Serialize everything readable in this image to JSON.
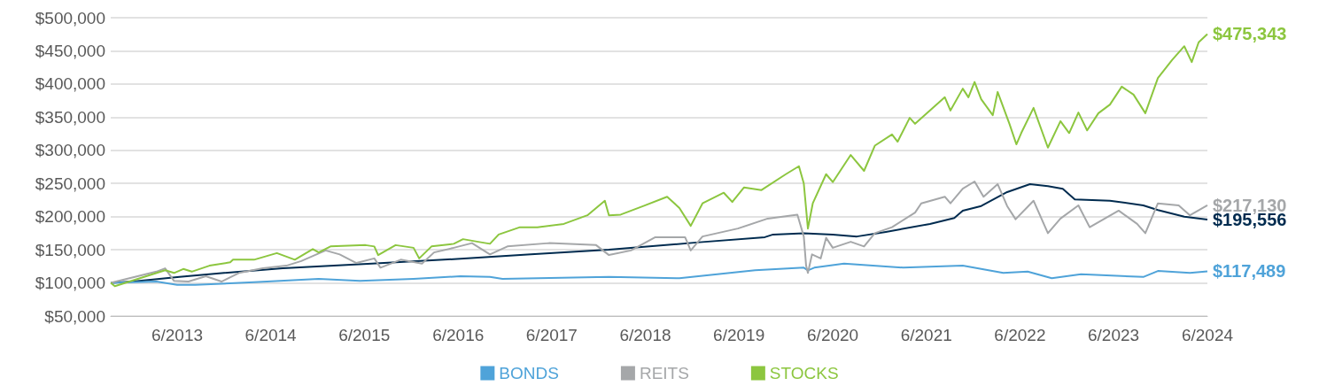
{
  "chart_data": {
    "type": "line",
    "marker": "none",
    "grid": "y",
    "legend": "bottom",
    "xlim": [
      "2012-09-15",
      "2024-06-01"
    ],
    "xticks": [
      {
        "value": "2013-06-01",
        "label": "6/2013"
      },
      {
        "value": "2014-06-01",
        "label": "6/2014"
      },
      {
        "value": "2015-06-01",
        "label": "6/2015"
      },
      {
        "value": "2016-06-01",
        "label": "6/2016"
      },
      {
        "value": "2017-06-01",
        "label": "6/2017"
      },
      {
        "value": "2018-06-01",
        "label": "6/2018"
      },
      {
        "value": "2019-06-01",
        "label": "6/2019"
      },
      {
        "value": "2020-06-01",
        "label": "6/2020"
      },
      {
        "value": "2021-06-01",
        "label": "6/2021"
      },
      {
        "value": "2022-06-01",
        "label": "6/2022"
      },
      {
        "value": "2023-06-01",
        "label": "6/2023"
      },
      {
        "value": "2024-06-01",
        "label": "6/2024"
      }
    ],
    "ylim": [
      50000,
      500000
    ],
    "yticks": [
      {
        "value": 50000,
        "label": "$50,000"
      },
      {
        "value": 100000,
        "label": "$100,000"
      },
      {
        "value": 150000,
        "label": "$150,000"
      },
      {
        "value": 200000,
        "label": "$200,000"
      },
      {
        "value": 250000,
        "label": "$250,000"
      },
      {
        "value": 300000,
        "label": "$300,000"
      },
      {
        "value": 350000,
        "label": "$350,000"
      },
      {
        "value": 400000,
        "label": "$400,000"
      },
      {
        "value": 450000,
        "label": "$450,000"
      },
      {
        "value": 500000,
        "label": "$500,000"
      }
    ],
    "series": [
      {
        "color": "#002b4f",
        "x": [
          "2012-09-15",
          "2012-12-10",
          "2013-06-10",
          "2013-12-01",
          "2014-07-18",
          "2015-07-01",
          "2016-08-18",
          "2017-03-12",
          "2018-01-10",
          "2018-12-18",
          "2019-09-10",
          "2019-10-12",
          "2020-02-09",
          "2020-06-01",
          "2020-09-03",
          "2020-12-25",
          "2021-06-15",
          "2021-09-18",
          "2021-10-21",
          "2022-01-01",
          "2022-04-12",
          "2022-07-10",
          "2022-09-18",
          "2022-11-15",
          "2023-01-01",
          "2023-05-18",
          "2023-09-25",
          "2023-11-21",
          "2024-03-03",
          "2024-06-01"
        ],
        "values": [
          100000,
          102000,
          109000,
          115000,
          122000,
          129000,
          138000,
          143000,
          150000,
          161000,
          169000,
          173000,
          175000,
          173000,
          170000,
          177000,
          189000,
          198000,
          209000,
          216000,
          237000,
          249000,
          246000,
          242000,
          226000,
          224000,
          217000,
          210000,
          200000,
          195556
        ]
      },
      {
        "name": "BONDS",
        "color": "#4fa3d9",
        "x": [
          "2012-09-15",
          "2013-03-12",
          "2013-06-01",
          "2013-08-10",
          "2014-03-28",
          "2014-12-05",
          "2015-05-15",
          "2015-12-10",
          "2016-06-10",
          "2016-10-03",
          "2016-11-21",
          "2018-01-10",
          "2018-10-12",
          "2019-08-03",
          "2020-02-09",
          "2020-02-25",
          "2020-03-21",
          "2020-07-15",
          "2021-03-03",
          "2021-10-21",
          "2022-03-28",
          "2022-07-01",
          "2022-10-03",
          "2023-01-25",
          "2023-09-25",
          "2023-11-21",
          "2024-03-25",
          "2024-06-01"
        ],
        "values": [
          100000,
          102000,
          97000,
          97000,
          101000,
          106000,
          103000,
          106000,
          110000,
          109000,
          106000,
          109000,
          107000,
          119000,
          123000,
          119000,
          123000,
          129000,
          123000,
          126000,
          115000,
          117000,
          107000,
          113000,
          109000,
          118000,
          115000,
          117489
        ]
      },
      {
        "name": "REITS",
        "color": "#a5a7a9",
        "x": [
          "2012-09-15",
          "2013-03-12",
          "2013-04-15",
          "2013-05-20",
          "2013-07-15",
          "2013-09-21",
          "2013-11-21",
          "2014-01-28",
          "2014-05-01",
          "2014-08-01",
          "2014-09-28",
          "2015-01-01",
          "2015-02-25",
          "2015-05-01",
          "2015-07-10",
          "2015-08-03",
          "2015-10-21",
          "2016-01-12",
          "2016-02-28",
          "2016-05-15",
          "2016-07-25",
          "2016-10-03",
          "2016-12-10",
          "2017-05-21",
          "2017-11-21",
          "2018-01-10",
          "2018-04-06",
          "2018-07-10",
          "2018-11-03",
          "2018-11-25",
          "2019-01-10",
          "2019-05-28",
          "2019-09-21",
          "2020-01-15",
          "2020-02-09",
          "2020-02-18",
          "2020-02-25",
          "2020-03-12",
          "2020-04-15",
          "2020-05-06",
          "2020-06-01",
          "2020-08-10",
          "2020-10-01",
          "2020-11-12",
          "2021-01-18",
          "2021-04-18",
          "2021-05-12",
          "2021-08-12",
          "2021-09-03",
          "2021-10-21",
          "2021-12-06",
          "2022-01-10",
          "2022-03-06",
          "2022-04-12",
          "2022-05-15",
          "2022-07-24",
          "2022-09-18",
          "2022-11-06",
          "2023-01-15",
          "2023-02-28",
          "2023-06-21",
          "2023-09-01",
          "2023-10-03",
          "2023-11-21",
          "2024-02-10",
          "2024-03-25",
          "2024-06-01"
        ],
        "values": [
          100000,
          117000,
          122000,
          103000,
          102000,
          110000,
          102000,
          115000,
          122000,
          126000,
          133000,
          149000,
          143000,
          130000,
          137000,
          123000,
          135000,
          129000,
          146000,
          153000,
          160000,
          143000,
          155000,
          160000,
          157000,
          142000,
          149000,
          169000,
          169000,
          149000,
          170000,
          182000,
          197000,
          203000,
          170000,
          126000,
          115000,
          143000,
          137000,
          168000,
          153000,
          162000,
          155000,
          175000,
          184000,
          206000,
          220000,
          230000,
          220000,
          242000,
          253000,
          230000,
          249000,
          216000,
          196000,
          224000,
          175000,
          197000,
          217000,
          184000,
          209000,
          189000,
          175000,
          220000,
          217000,
          202000,
          217130
        ]
      },
      {
        "name": "STOCKS",
        "color": "#8cc63f",
        "x": [
          "2012-09-15",
          "2012-10-01",
          "2013-04-15",
          "2013-05-20",
          "2013-06-25",
          "2013-07-28",
          "2013-10-05",
          "2013-12-25",
          "2014-01-05",
          "2014-03-28",
          "2014-06-25",
          "2014-09-03",
          "2014-11-12",
          "2014-12-05",
          "2015-01-20",
          "2015-06-06",
          "2015-07-10",
          "2015-07-25",
          "2015-10-01",
          "2015-12-10",
          "2016-01-01",
          "2016-02-18",
          "2016-05-15",
          "2016-06-20",
          "2016-08-18",
          "2016-10-03",
          "2016-11-06",
          "2017-01-28",
          "2017-04-06",
          "2017-07-18",
          "2017-10-18",
          "2017-12-25",
          "2018-01-10",
          "2018-02-25",
          "2018-05-25",
          "2018-08-25",
          "2018-10-12",
          "2018-11-25",
          "2019-01-10",
          "2019-04-03",
          "2019-05-06",
          "2019-06-21",
          "2019-08-28",
          "2019-12-01",
          "2020-01-21",
          "2020-02-09",
          "2020-02-25",
          "2020-03-15",
          "2020-05-06",
          "2020-06-01",
          "2020-08-10",
          "2020-10-01",
          "2020-11-12",
          "2021-01-18",
          "2021-02-09",
          "2021-03-28",
          "2021-04-18",
          "2021-08-12",
          "2021-09-03",
          "2021-10-21",
          "2021-11-12",
          "2021-12-06",
          "2022-01-01",
          "2022-02-15",
          "2022-03-06",
          "2022-04-21",
          "2022-05-18",
          "2022-06-06",
          "2022-07-24",
          "2022-09-18",
          "2022-11-06",
          "2022-12-10",
          "2023-01-15",
          "2023-02-18",
          "2023-04-03",
          "2023-05-18",
          "2023-07-03",
          "2023-08-18",
          "2023-10-03",
          "2023-11-21",
          "2024-01-15",
          "2024-03-03",
          "2024-04-01",
          "2024-04-28",
          "2024-06-01"
        ],
        "values": [
          100000,
          95000,
          119000,
          115000,
          121000,
          117000,
          126000,
          131000,
          135000,
          135000,
          145000,
          135000,
          151000,
          146000,
          155000,
          157000,
          155000,
          142000,
          157000,
          153000,
          137000,
          155000,
          159000,
          166000,
          162000,
          159000,
          173000,
          184000,
          184000,
          189000,
          202000,
          224000,
          202000,
          203000,
          216000,
          230000,
          213000,
          186000,
          220000,
          236000,
          222000,
          244000,
          240000,
          264000,
          276000,
          250000,
          182000,
          220000,
          264000,
          252000,
          293000,
          269000,
          307000,
          324000,
          313000,
          349000,
          340000,
          380000,
          360000,
          393000,
          380000,
          403000,
          377000,
          353000,
          388000,
          340000,
          309000,
          326000,
          364000,
          304000,
          344000,
          326000,
          357000,
          330000,
          356000,
          369000,
          396000,
          384000,
          356000,
          409000,
          436000,
          457000,
          433000,
          463000,
          475343
        ]
      }
    ],
    "annotations": [
      {
        "text": "$475,343",
        "x": "2024-06-01",
        "y": 475343
      },
      {
        "text": "$217,130",
        "x": "2024-06-01",
        "y": 217130
      },
      {
        "text": "$195,556",
        "x": "2024-06-01",
        "y": 195556
      },
      {
        "text": "$117,489",
        "x": "2024-06-01",
        "y": 117489
      }
    ]
  }
}
